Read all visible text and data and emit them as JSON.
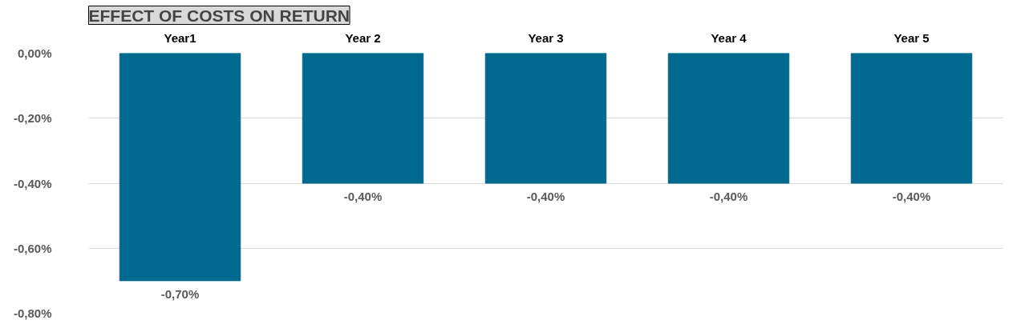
{
  "chart_data": {
    "type": "bar",
    "title": "EFFECT OF COSTS ON RETURN",
    "categories": [
      "Year1",
      "Year 2",
      "Year 3",
      "Year 4",
      "Year 5"
    ],
    "values": [
      -0.7,
      -0.4,
      -0.4,
      -0.4,
      -0.4
    ],
    "value_labels": [
      "-0,70%",
      "-0,40%",
      "-0,40%",
      "-0,40%",
      "-0,40%"
    ],
    "color": "#00698f",
    "ylim": [
      -0.8,
      0
    ],
    "yticks": [
      {
        "value": 0,
        "label": "0,00%"
      },
      {
        "value": -0.2,
        "label": "-0,20%"
      },
      {
        "value": -0.4,
        "label": "-0,40%"
      },
      {
        "value": -0.6,
        "label": "-0,60%"
      },
      {
        "value": -0.8,
        "label": "-0,80%"
      }
    ],
    "grid": "y"
  }
}
